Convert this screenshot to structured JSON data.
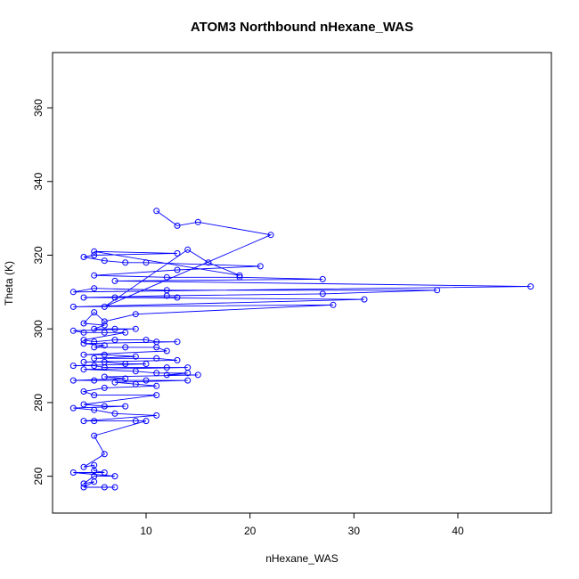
{
  "chart_data": {
    "type": "scatter",
    "title": "ATOM3 Northbound nHexane_WAS",
    "xlabel": "nHexane_WAS",
    "ylabel": "Theta (K)",
    "xlim": [
      1,
      49
    ],
    "ylim": [
      250,
      375
    ],
    "x_ticks": [
      10,
      20,
      30,
      40
    ],
    "y_ticks": [
      260,
      280,
      300,
      320,
      340,
      360
    ],
    "grid": false,
    "legend": "none",
    "connected": true,
    "series_color": "#0000ff",
    "points": [
      [
        11,
        332
      ],
      [
        13,
        328
      ],
      [
        15,
        329
      ],
      [
        22,
        325.5
      ],
      [
        6,
        306
      ],
      [
        14,
        321.5
      ],
      [
        16,
        318
      ],
      [
        19,
        314.5
      ],
      [
        5,
        321
      ],
      [
        13,
        320.5
      ],
      [
        5,
        320
      ],
      [
        4,
        319.5
      ],
      [
        6,
        318.5
      ],
      [
        8,
        318
      ],
      [
        10,
        318
      ],
      [
        21,
        317
      ],
      [
        13,
        316
      ],
      [
        5,
        314.5
      ],
      [
        12,
        314
      ],
      [
        19,
        314
      ],
      [
        27,
        313.5
      ],
      [
        7,
        313
      ],
      [
        47,
        311.5
      ],
      [
        3,
        310
      ],
      [
        5,
        311
      ],
      [
        12,
        310.5
      ],
      [
        38,
        310.5
      ],
      [
        27,
        309.5
      ],
      [
        12,
        309
      ],
      [
        4,
        308.5
      ],
      [
        13,
        308.5
      ],
      [
        7,
        308.5
      ],
      [
        31,
        308
      ],
      [
        3,
        306
      ],
      [
        28,
        306.5
      ],
      [
        9,
        304
      ],
      [
        6,
        302
      ],
      [
        5,
        304.5
      ],
      [
        4,
        301.5
      ],
      [
        6,
        301
      ],
      [
        5,
        300
      ],
      [
        7,
        300
      ],
      [
        9,
        300
      ],
      [
        3,
        299.5
      ],
      [
        4,
        299
      ],
      [
        6,
        299
      ],
      [
        8,
        299
      ],
      [
        4,
        297
      ],
      [
        5,
        296.5
      ],
      [
        7,
        297
      ],
      [
        10,
        297
      ],
      [
        11,
        296.5
      ],
      [
        13,
        296.5
      ],
      [
        4,
        296
      ],
      [
        6,
        295.5
      ],
      [
        5,
        295
      ],
      [
        8,
        295
      ],
      [
        11,
        295
      ],
      [
        12,
        294
      ],
      [
        4,
        293
      ],
      [
        6,
        293
      ],
      [
        9,
        292.5
      ],
      [
        5,
        292
      ],
      [
        11,
        292
      ],
      [
        13,
        291.5
      ],
      [
        4,
        291
      ],
      [
        6,
        291
      ],
      [
        8,
        290.5
      ],
      [
        10,
        290.5
      ],
      [
        3,
        290
      ],
      [
        5,
        290
      ],
      [
        6,
        289.5
      ],
      [
        12,
        289.5
      ],
      [
        14,
        289.5
      ],
      [
        4,
        289
      ],
      [
        9,
        288.5
      ],
      [
        11,
        288
      ],
      [
        14,
        288
      ],
      [
        12,
        287.5
      ],
      [
        15,
        287.5
      ],
      [
        6,
        287
      ],
      [
        8,
        286.5
      ],
      [
        3,
        286
      ],
      [
        5,
        286
      ],
      [
        10,
        286
      ],
      [
        14,
        286
      ],
      [
        7,
        285.5
      ],
      [
        9,
        285
      ],
      [
        11,
        284.5
      ],
      [
        6,
        284
      ],
      [
        4,
        283
      ],
      [
        5,
        282
      ],
      [
        11,
        282
      ],
      [
        4,
        279.5
      ],
      [
        6,
        279
      ],
      [
        8,
        279
      ],
      [
        3,
        278.5
      ],
      [
        5,
        278
      ],
      [
        7,
        277
      ],
      [
        11,
        276.5
      ],
      [
        4,
        275
      ],
      [
        5,
        275
      ],
      [
        9,
        275
      ],
      [
        10,
        275
      ],
      [
        5,
        271
      ],
      [
        6,
        266
      ],
      [
        4,
        262.5
      ],
      [
        5,
        263
      ],
      [
        5,
        261.5
      ],
      [
        6,
        261
      ],
      [
        3,
        261
      ],
      [
        7,
        260
      ],
      [
        5,
        260
      ],
      [
        4,
        258
      ],
      [
        5,
        258.5
      ],
      [
        4,
        257
      ],
      [
        6,
        257
      ],
      [
        7,
        257
      ]
    ]
  }
}
